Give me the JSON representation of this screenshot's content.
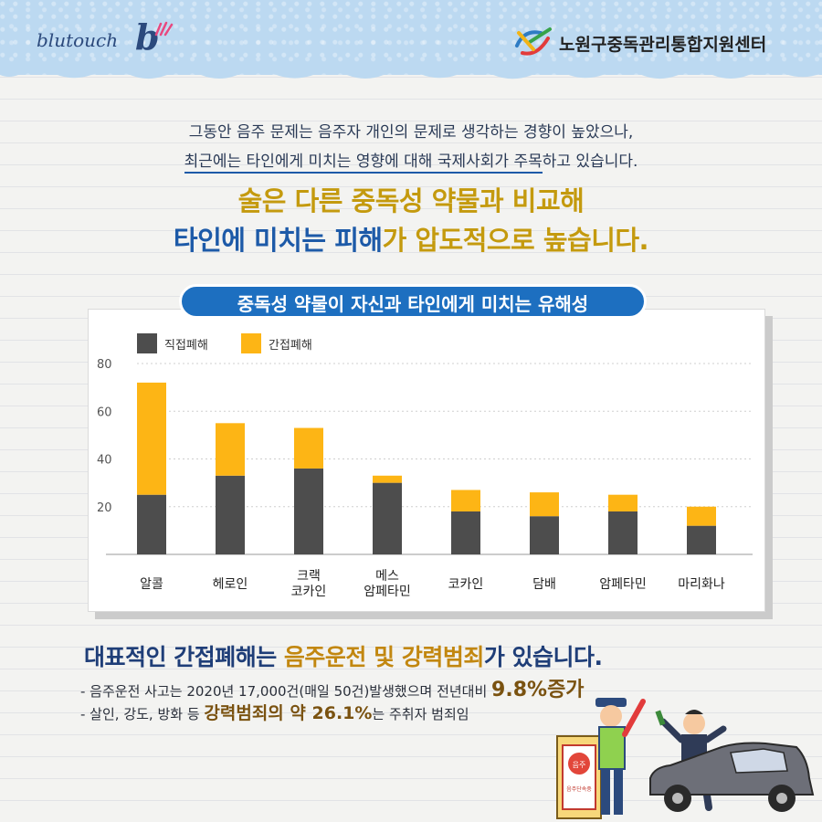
{
  "header": {
    "brand_text": "blutouch",
    "brand_mark": "b",
    "org_name": "노원구중독관리통합지원센터",
    "icons": [
      "brand-spark-icon",
      "org-logo-icon"
    ]
  },
  "intro": {
    "line1": "그동안 음주 문제는 음주자 개인의 문제로 생각하는 경향이 높았으나,",
    "line2_underlined": "최근에는 타인에게 미치는 영향에 대해 국제사회가 주목",
    "line2_rest": "하고 있습니다."
  },
  "headline": {
    "line1": "술은 다른 중독성 약물과 비교해",
    "line2_part1": "타인에 미치는 피해",
    "line2_part2": "가 압도적으로 높습니다."
  },
  "chart_title": "중독성 약물이 자신과 타인에게 미치는 유해성",
  "chart_data": {
    "type": "bar",
    "stacked": true,
    "categories": [
      "알콜",
      "헤로인",
      "크랙\n코카인",
      "메스\n암페타민",
      "코카인",
      "담배",
      "암페타민",
      "마리화나"
    ],
    "series": [
      {
        "name": "직접폐해",
        "color": "#4d4d4d",
        "values": [
          25,
          33,
          36,
          30,
          18,
          16,
          18,
          12
        ]
      },
      {
        "name": "간접폐해",
        "color": "#fdb515",
        "values": [
          47,
          22,
          17,
          3,
          9,
          10,
          7,
          8
        ]
      }
    ],
    "yticks": [
      20,
      40,
      60,
      80
    ],
    "ylim": [
      0,
      80
    ],
    "grid": true,
    "legend_position": "top-left"
  },
  "bottom": {
    "title_part1": "대표적인 간접폐해는 ",
    "title_part2": "음주운전 및 강력범죄",
    "title_part3": "가 있습니다.",
    "bullet1_text": "-  음주운전 사고는 2020년 17,000건(매일 50건)발생했으며 전년대비 ",
    "bullet1_value": "9.8%증가",
    "bullet2_text": "-  살인, 강도, 방화 등 ",
    "bullet2_highlight": "강력범죄의 약 26.1%",
    "bullet2_rest": "는 주취자 범죄임",
    "illustration_sign_line1": "음주",
    "illustration_sign_line2": "음주단속중",
    "illustration_icons": [
      "police-officer-icon",
      "checkpoint-sign-icon",
      "drunk-man-icon",
      "car-icon"
    ]
  }
}
